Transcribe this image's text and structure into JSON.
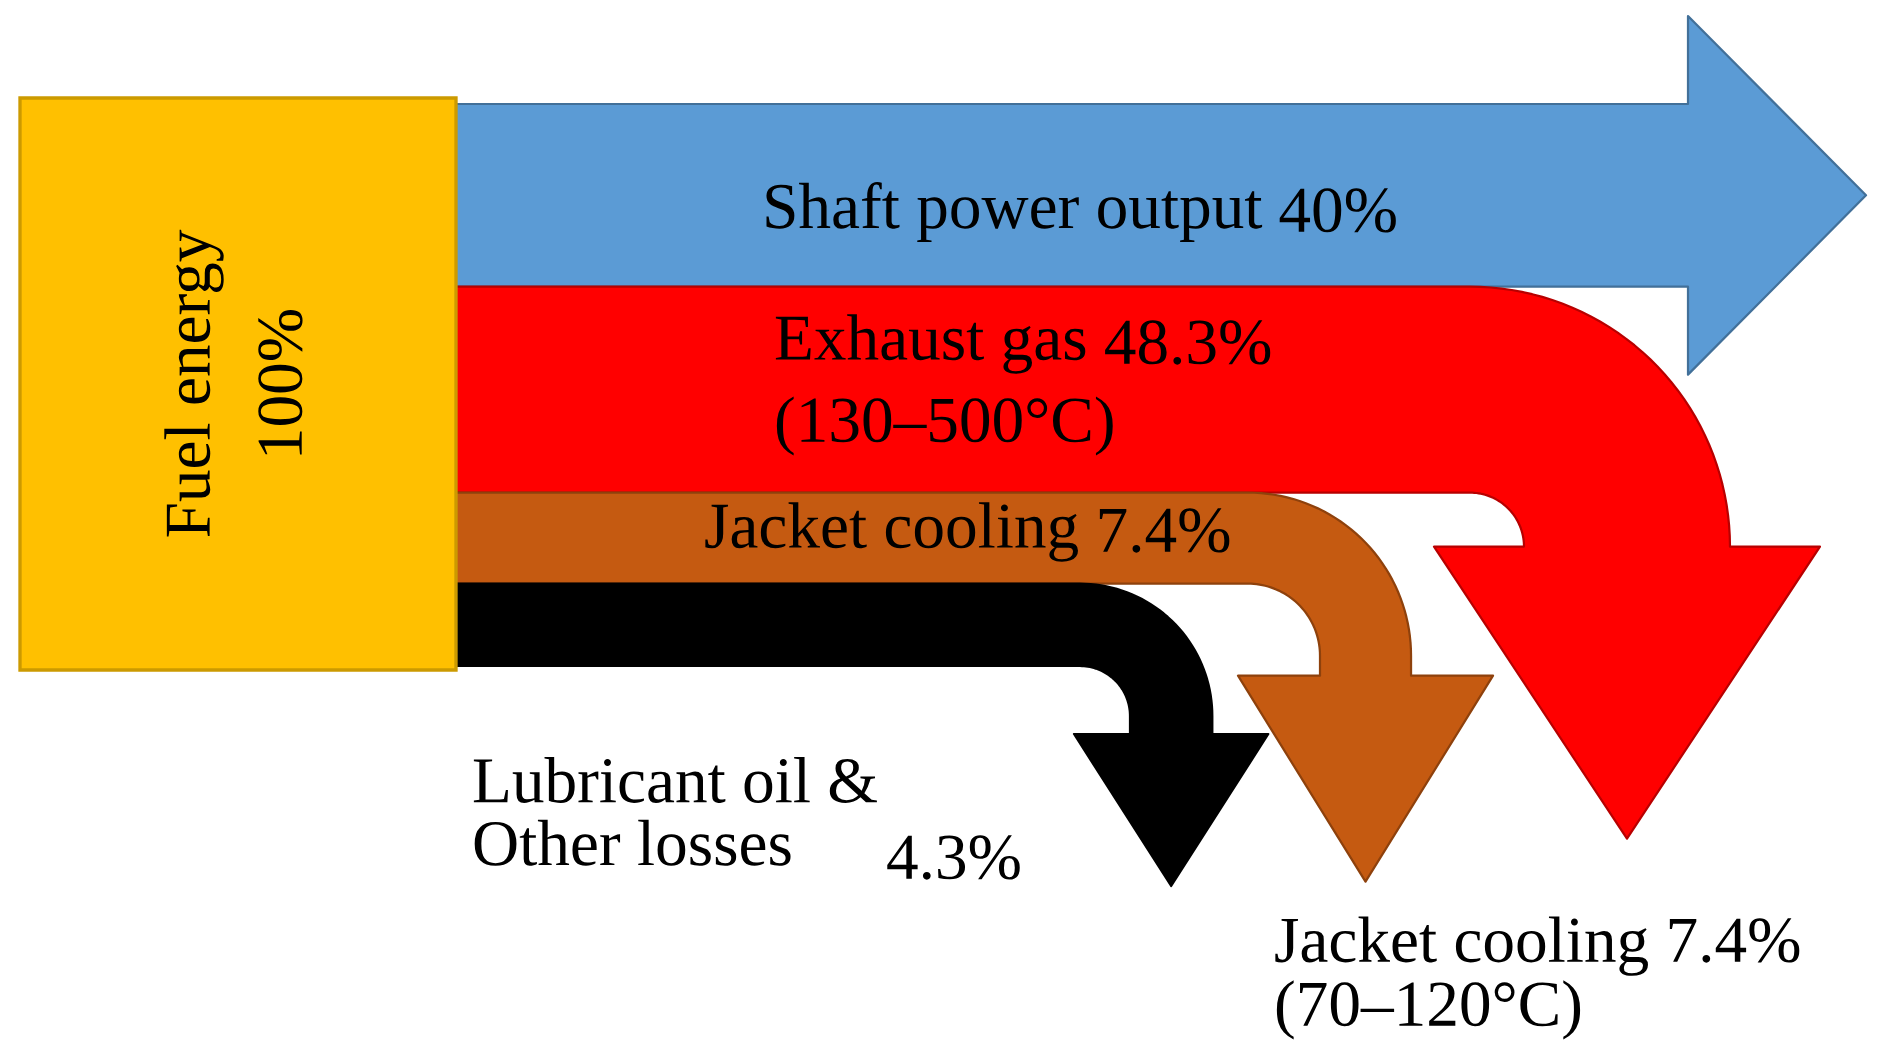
{
  "chart_data": {
    "type": "other",
    "categories": [
      "Fuel energy",
      "Shaft power output",
      "Exhaust gas",
      "Jacket cooling",
      "Lubricant oil &\nOther losses"
    ],
    "values": [
      100,
      40,
      48.3,
      7.4,
      4.3
    ],
    "value_labels": [
      "100%",
      "40%",
      "48.3%",
      "7.4%",
      "4.3%"
    ],
    "colors": [
      "#ffc000",
      "#5b9bd5",
      "#ff0000",
      "#c55a11",
      "#000000"
    ],
    "annotations": [
      "(130–500°C)",
      "Jacket cooling 7.4%\n(70–120°C)"
    ]
  }
}
